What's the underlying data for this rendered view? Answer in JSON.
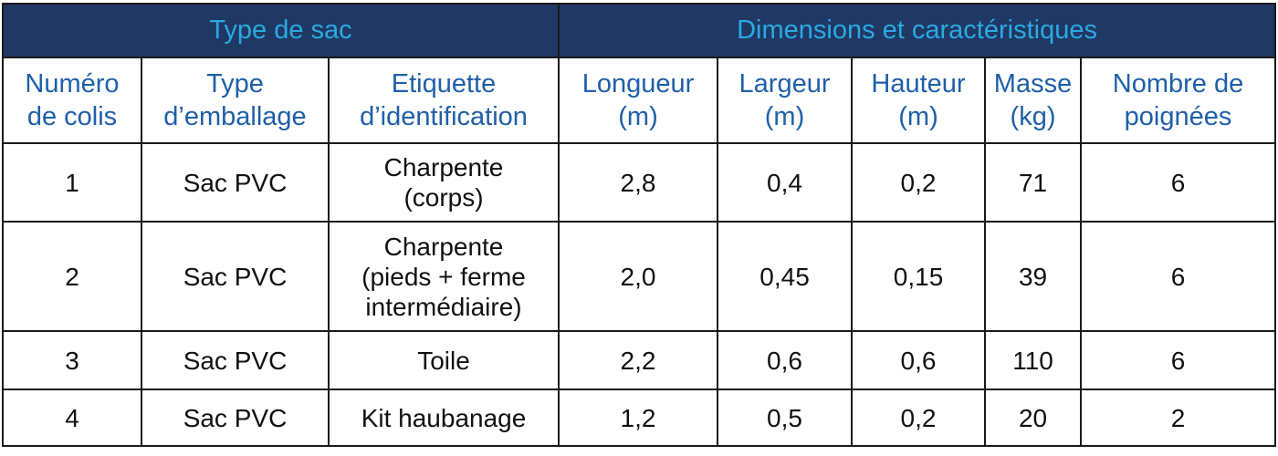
{
  "group_headers": {
    "bag_type": "Type de sac",
    "dimensions": "Dimensions et caractéristiques"
  },
  "columns": [
    "Numéro\nde colis",
    "Type\nd’emballage",
    "Etiquette\nd’identification",
    "Longueur\n(m)",
    "Largeur\n(m)",
    "Hauteur\n(m)",
    "Masse\n(kg)",
    "Nombre de\npoignées"
  ],
  "rows": [
    [
      "1",
      "Sac PVC",
      "Charpente\n(corps)",
      "2,8",
      "0,4",
      "0,2",
      "71",
      "6"
    ],
    [
      "2",
      "Sac PVC",
      "Charpente\n(pieds + ferme\nintermédiaire)",
      "2,0",
      "0,45",
      "0,15",
      "39",
      "6"
    ],
    [
      "3",
      "Sac PVC",
      "Toile",
      "2,2",
      "0,6",
      "0,6",
      "110",
      "6"
    ],
    [
      "4",
      "Sac PVC",
      "Kit haubanage",
      "1,2",
      "0,5",
      "0,2",
      "20",
      "2"
    ]
  ],
  "colors": {
    "group_header_bg": "#1f3864",
    "group_header_text": "#2aaae2",
    "column_header_text": "#1f5fa8",
    "body_text": "#111111"
  }
}
